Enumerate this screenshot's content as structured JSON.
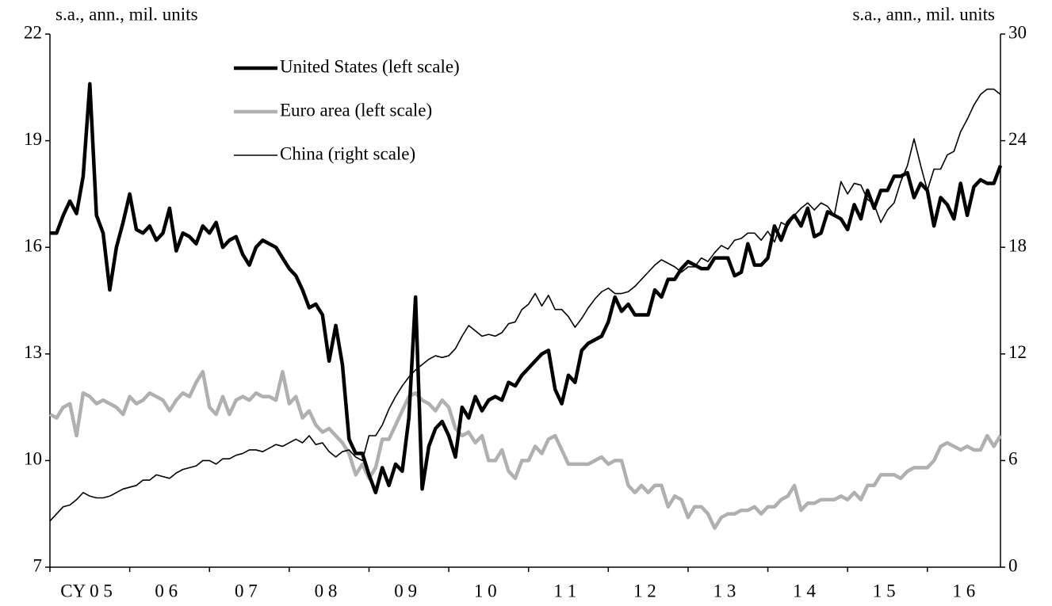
{
  "chart_data": {
    "type": "line",
    "y_label": "s.a., ann., mil. units",
    "y2_label": "s.a., ann., mil. units",
    "categories": [
      "CY 0 5",
      null,
      null,
      null,
      null,
      null,
      null,
      null,
      null,
      null,
      null,
      null,
      "0 6",
      null,
      null,
      null,
      null,
      null,
      null,
      null,
      null,
      null,
      null,
      null,
      "0 7",
      null,
      null,
      null,
      null,
      null,
      null,
      null,
      null,
      null,
      null,
      null,
      "0 8",
      null,
      null,
      null,
      null,
      null,
      null,
      null,
      null,
      null,
      null,
      null,
      "0 9",
      null,
      null,
      null,
      null,
      null,
      null,
      null,
      null,
      null,
      null,
      null,
      "1 0",
      null,
      null,
      null,
      null,
      null,
      null,
      null,
      null,
      null,
      null,
      null,
      "1 1",
      null,
      null,
      null,
      null,
      null,
      null,
      null,
      null,
      null,
      null,
      null,
      "1 2",
      null,
      null,
      null,
      null,
      null,
      null,
      null,
      null,
      null,
      null,
      null,
      "1 3",
      null,
      null,
      null,
      null,
      null,
      null,
      null,
      null,
      null,
      null,
      null,
      "1 4",
      null,
      null,
      null,
      null,
      null,
      null,
      null,
      null,
      null,
      null,
      null,
      "1 5",
      null,
      null,
      null,
      null,
      null,
      null,
      null,
      null,
      null,
      null,
      null,
      "1 6",
      null,
      null,
      null,
      null,
      null,
      null,
      null,
      null,
      null,
      null,
      null
    ],
    "series": [
      {
        "name": "United States (left scale)",
        "color": "#000000",
        "values": [
          16.4,
          16.4,
          16.9,
          17.3,
          16.95,
          18.0,
          20.6,
          16.9,
          16.4,
          14.8,
          16.0,
          16.7,
          17.5,
          16.5,
          16.4,
          16.6,
          16.2,
          16.4,
          17.1,
          15.9,
          16.4,
          16.3,
          16.1,
          16.6,
          16.4,
          16.7,
          16.0,
          16.2,
          16.3,
          15.8,
          15.5,
          16.0,
          16.2,
          16.1,
          16.0,
          15.7,
          15.4,
          15.2,
          14.8,
          14.3,
          14.4,
          14.1,
          12.8,
          13.8,
          12.7,
          10.6,
          10.2,
          10.2,
          9.6,
          9.1,
          9.8,
          9.3,
          9.9,
          9.7,
          11.2,
          14.6,
          9.2,
          10.4,
          10.9,
          11.1,
          10.7,
          10.1,
          11.5,
          11.2,
          11.8,
          11.4,
          11.7,
          11.8,
          11.7,
          12.2,
          12.1,
          12.4,
          12.6,
          12.8,
          13.0,
          13.1,
          12.0,
          11.6,
          12.4,
          12.2,
          13.1,
          13.3,
          13.4,
          13.5,
          13.9,
          14.6,
          14.2,
          14.4,
          14.1,
          14.1,
          14.1,
          14.8,
          14.6,
          15.1,
          15.1,
          15.4,
          15.6,
          15.5,
          15.4,
          15.4,
          15.7,
          15.7,
          15.7,
          15.2,
          15.3,
          16.1,
          15.5,
          15.5,
          15.7,
          16.6,
          16.2,
          16.7,
          16.9,
          16.6,
          17.1,
          16.3,
          16.4,
          17.0,
          16.9,
          16.8,
          16.5,
          17.2,
          16.8,
          17.6,
          17.1,
          17.6,
          17.6,
          18.0,
          18.0,
          18.1,
          17.4,
          17.8,
          17.6,
          16.6,
          17.4,
          17.2,
          16.8,
          17.8,
          16.9,
          17.7,
          17.9,
          17.8,
          17.8,
          18.3
        ]
      },
      {
        "name": "Euro area (left scale)",
        "color": "#b0b0b0",
        "values": [
          11.3,
          11.2,
          11.5,
          11.6,
          10.7,
          11.9,
          11.8,
          11.6,
          11.7,
          11.6,
          11.5,
          11.3,
          11.8,
          11.6,
          11.7,
          11.9,
          11.8,
          11.7,
          11.4,
          11.7,
          11.9,
          11.8,
          12.2,
          12.5,
          11.5,
          11.3,
          11.8,
          11.3,
          11.7,
          11.8,
          11.7,
          11.9,
          11.8,
          11.8,
          11.7,
          12.5,
          11.6,
          11.8,
          11.2,
          11.4,
          11.0,
          10.8,
          10.9,
          10.7,
          10.5,
          10.2,
          9.6,
          9.9,
          9.5,
          9.8,
          10.6,
          10.6,
          11.0,
          11.4,
          11.8,
          11.9,
          11.7,
          11.6,
          11.4,
          11.7,
          11.5,
          10.9,
          10.7,
          10.8,
          10.5,
          10.7,
          10.0,
          10.0,
          10.3,
          9.7,
          9.5,
          10.0,
          10.0,
          10.4,
          10.2,
          10.6,
          10.7,
          10.3,
          9.9,
          9.9,
          9.9,
          9.9,
          10.0,
          10.1,
          9.9,
          10.0,
          10.0,
          9.3,
          9.1,
          9.3,
          9.1,
          9.3,
          9.3,
          8.7,
          9.0,
          8.9,
          8.4,
          8.7,
          8.7,
          8.5,
          8.1,
          8.4,
          8.5,
          8.5,
          8.6,
          8.6,
          8.7,
          8.5,
          8.7,
          8.7,
          8.9,
          9.0,
          9.3,
          8.6,
          8.8,
          8.8,
          8.9,
          8.9,
          8.9,
          9.0,
          8.9,
          9.1,
          8.9,
          9.3,
          9.3,
          9.6,
          9.6,
          9.6,
          9.5,
          9.7,
          9.8,
          9.8,
          9.8,
          10.0,
          10.4,
          10.5,
          10.4,
          10.3,
          10.4,
          10.3,
          10.3,
          10.7,
          10.4,
          10.7
        ]
      },
      {
        "name": "China (right scale)",
        "color": "#000000",
        "axis": "y2",
        "values": [
          2.6,
          3.0,
          3.4,
          3.5,
          3.8,
          4.2,
          4.0,
          3.9,
          3.9,
          4.0,
          4.2,
          4.4,
          4.5,
          4.6,
          4.9,
          4.9,
          5.2,
          5.1,
          5.0,
          5.3,
          5.5,
          5.6,
          5.7,
          6.0,
          6.0,
          5.8,
          6.1,
          6.1,
          6.3,
          6.4,
          6.6,
          6.6,
          6.5,
          6.7,
          6.9,
          6.8,
          7.0,
          7.2,
          7.0,
          7.4,
          6.9,
          7.0,
          6.5,
          6.2,
          6.5,
          6.6,
          6.2,
          6.0,
          7.4,
          7.4,
          8.0,
          8.9,
          9.6,
          10.2,
          10.7,
          11.1,
          11.4,
          11.7,
          11.9,
          11.8,
          11.9,
          12.3,
          13.0,
          13.6,
          13.3,
          13.0,
          13.1,
          13.0,
          13.2,
          13.7,
          13.8,
          14.5,
          14.8,
          15.4,
          14.7,
          15.3,
          14.5,
          14.5,
          14.1,
          13.5,
          14.0,
          14.6,
          15.1,
          15.5,
          15.7,
          15.4,
          15.4,
          15.5,
          15.8,
          16.2,
          16.6,
          17.0,
          17.3,
          17.1,
          16.9,
          16.6,
          16.9,
          16.9,
          17.4,
          17.2,
          17.7,
          18.1,
          17.9,
          18.4,
          18.5,
          18.8,
          18.8,
          18.4,
          18.9,
          18.3,
          19.4,
          19.2,
          19.8,
          20.2,
          20.5,
          20.1,
          20.5,
          20.3,
          19.8,
          21.7,
          21.0,
          21.6,
          21.5,
          20.7,
          20.4,
          19.4,
          20.1,
          20.5,
          21.7,
          22.6,
          24.1,
          22.6,
          21.2,
          22.4,
          22.4,
          23.2,
          23.4,
          24.5,
          25.2,
          26.0,
          26.6,
          26.9,
          26.9,
          26.6
        ]
      }
    ],
    "ylim": [
      7,
      22
    ],
    "yticks": [
      7,
      10,
      13,
      16,
      19,
      22
    ],
    "y2lim": [
      0,
      30
    ],
    "y2ticks": [
      0,
      6,
      12,
      18,
      24,
      30
    ]
  }
}
